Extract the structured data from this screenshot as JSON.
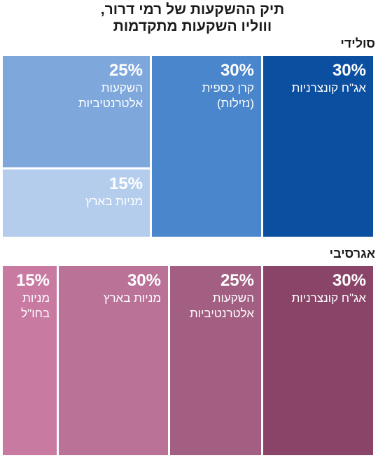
{
  "title": {
    "line1": "תיק ההשקעות של רמי דרור,",
    "line2": "וווליו השקעות מתקדמות"
  },
  "colors": {
    "solid_dark": "#0b4fa0",
    "solid_mid": "#4a86cc",
    "solid_light": "#7ea7dc",
    "solid_pale": "#b5cdec",
    "aggr_dark": "#8a4467",
    "aggr_mid": "#a35f82",
    "aggr_light": "#bb7297",
    "aggr_pale": "#c97aa1"
  },
  "chart_data": [
    {
      "type": "treemap",
      "name": "סולידי",
      "items": [
        {
          "label_lines": [
            "אג\"ח קונצרניות"
          ],
          "value": 30,
          "value_label": "30%"
        },
        {
          "label_lines": [
            "קרן כספית",
            "(נזילות)"
          ],
          "value": 30,
          "value_label": "30%"
        },
        {
          "label_lines": [
            "השקעות",
            "אלטרנטיביות"
          ],
          "value": 25,
          "value_label": "25%"
        },
        {
          "label_lines": [
            "מניות בארץ"
          ],
          "value": 15,
          "value_label": "15%"
        }
      ]
    },
    {
      "type": "treemap",
      "name": "אגרסיבי",
      "items": [
        {
          "label_lines": [
            "אג\"ח קונצרניות"
          ],
          "value": 30,
          "value_label": "30%"
        },
        {
          "label_lines": [
            "השקעות",
            "אלטרנטיביות"
          ],
          "value": 25,
          "value_label": "25%"
        },
        {
          "label_lines": [
            "מניות בארץ"
          ],
          "value": 30,
          "value_label": "30%"
        },
        {
          "label_lines": [
            "מניות",
            "בחו\"ל"
          ],
          "value": 15,
          "value_label": "15%"
        }
      ]
    }
  ]
}
